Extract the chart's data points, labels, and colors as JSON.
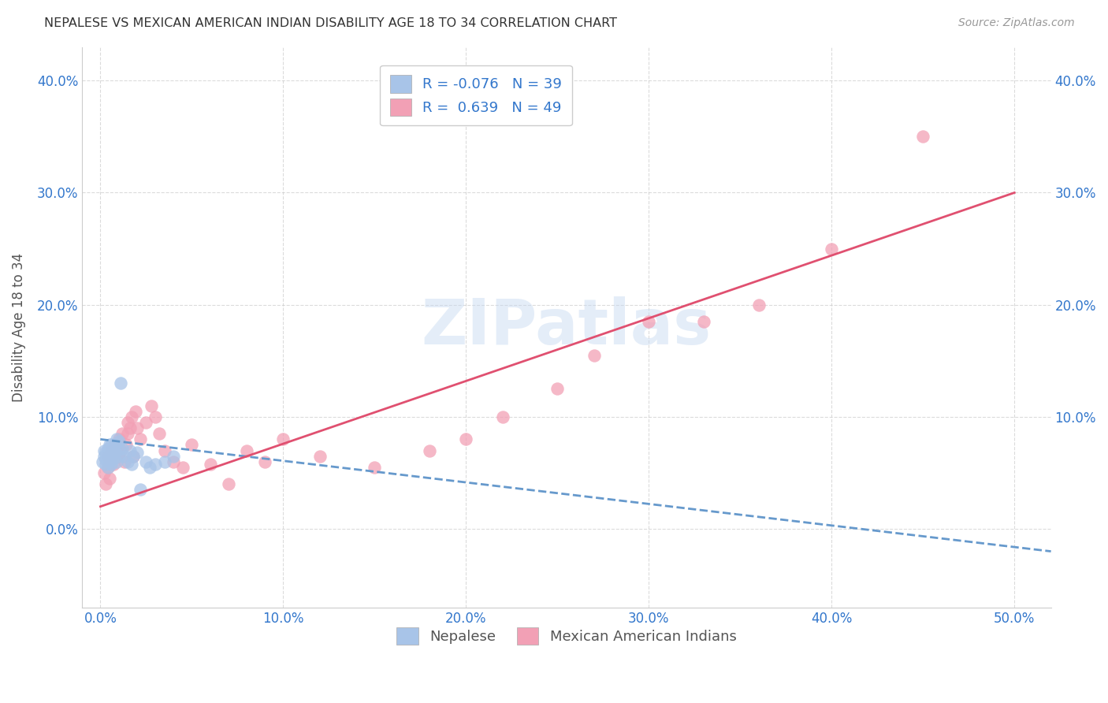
{
  "title": "NEPALESE VS MEXICAN AMERICAN INDIAN DISABILITY AGE 18 TO 34 CORRELATION CHART",
  "source": "Source: ZipAtlas.com",
  "ylabel": "Disability Age 18 to 34",
  "x_tick_labels": [
    "0.0%",
    "10.0%",
    "20.0%",
    "30.0%",
    "40.0%",
    "50.0%"
  ],
  "x_tick_values": [
    0.0,
    0.1,
    0.2,
    0.3,
    0.4,
    0.5
  ],
  "y_tick_labels_left": [
    "0.0%",
    "10.0%",
    "20.0%",
    "30.0%",
    "40.0%"
  ],
  "y_tick_labels_right": [
    "10.0%",
    "20.0%",
    "30.0%",
    "40.0%"
  ],
  "y_tick_values": [
    0.0,
    0.1,
    0.2,
    0.3,
    0.4
  ],
  "y_tick_values_right": [
    0.1,
    0.2,
    0.3,
    0.4
  ],
  "xlim": [
    -0.01,
    0.52
  ],
  "ylim": [
    -0.07,
    0.43
  ],
  "nepalese_R": -0.076,
  "nepalese_N": 39,
  "mexican_R": 0.639,
  "mexican_N": 49,
  "nepalese_color": "#a8c4e8",
  "mexican_color": "#f2a0b5",
  "nepalese_line_color": "#6699cc",
  "mexican_line_color": "#e05070",
  "background_color": "#ffffff",
  "grid_color": "#cccccc",
  "title_color": "#333333",
  "axis_label_color": "#3377cc",
  "watermark_color": "#c5d8f0",
  "legend_label_nepalese": "Nepalese",
  "legend_label_mexican": "Mexican American Indians",
  "nepalese_x": [
    0.001,
    0.002,
    0.002,
    0.003,
    0.003,
    0.003,
    0.004,
    0.004,
    0.004,
    0.005,
    0.005,
    0.005,
    0.005,
    0.006,
    0.006,
    0.006,
    0.007,
    0.007,
    0.008,
    0.008,
    0.009,
    0.009,
    0.01,
    0.01,
    0.01,
    0.011,
    0.012,
    0.013,
    0.015,
    0.016,
    0.017,
    0.018,
    0.02,
    0.022,
    0.025,
    0.027,
    0.03,
    0.035,
    0.04
  ],
  "nepalese_y": [
    0.06,
    0.065,
    0.07,
    0.058,
    0.062,
    0.068,
    0.055,
    0.063,
    0.072,
    0.06,
    0.065,
    0.07,
    0.075,
    0.058,
    0.068,
    0.075,
    0.063,
    0.07,
    0.068,
    0.075,
    0.06,
    0.08,
    0.065,
    0.072,
    0.078,
    0.13,
    0.072,
    0.065,
    0.06,
    0.07,
    0.058,
    0.065,
    0.068,
    0.035,
    0.06,
    0.055,
    0.058,
    0.06,
    0.065
  ],
  "mexican_x": [
    0.002,
    0.003,
    0.004,
    0.004,
    0.005,
    0.005,
    0.006,
    0.007,
    0.008,
    0.009,
    0.01,
    0.01,
    0.011,
    0.012,
    0.013,
    0.014,
    0.015,
    0.015,
    0.016,
    0.017,
    0.018,
    0.019,
    0.02,
    0.022,
    0.025,
    0.028,
    0.03,
    0.032,
    0.035,
    0.04,
    0.045,
    0.05,
    0.06,
    0.07,
    0.08,
    0.09,
    0.1,
    0.12,
    0.15,
    0.18,
    0.2,
    0.22,
    0.25,
    0.27,
    0.3,
    0.33,
    0.36,
    0.4,
    0.45
  ],
  "mexican_y": [
    0.05,
    0.04,
    0.055,
    0.065,
    0.045,
    0.06,
    0.07,
    0.058,
    0.075,
    0.065,
    0.08,
    0.068,
    0.07,
    0.085,
    0.06,
    0.075,
    0.085,
    0.095,
    0.09,
    0.1,
    0.065,
    0.105,
    0.09,
    0.08,
    0.095,
    0.11,
    0.1,
    0.085,
    0.07,
    0.06,
    0.055,
    0.075,
    0.058,
    0.04,
    0.07,
    0.06,
    0.08,
    0.065,
    0.055,
    0.07,
    0.08,
    0.1,
    0.125,
    0.155,
    0.185,
    0.185,
    0.2,
    0.25,
    0.35
  ],
  "nepalese_trend_x0": 0.0,
  "nepalese_trend_x1": 0.52,
  "nepalese_trend_y0": 0.08,
  "nepalese_trend_y1": -0.02,
  "mexican_trend_x0": 0.0,
  "mexican_trend_x1": 0.5,
  "mexican_trend_y0": 0.02,
  "mexican_trend_y1": 0.3
}
